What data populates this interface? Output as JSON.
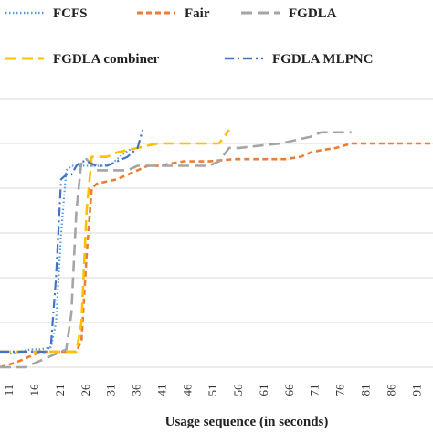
{
  "chart_data": {
    "type": "line",
    "xlabel": "Usage sequence (in seconds)",
    "ylabel": "",
    "x_ticks": [
      "11",
      "16",
      "21",
      "26",
      "31",
      "36",
      "41",
      "46",
      "51",
      "56",
      "61",
      "66",
      "71",
      "76",
      "81",
      "86",
      "91"
    ],
    "xlim": [
      9,
      94
    ],
    "ylim": [
      0,
      6
    ],
    "grid": true,
    "legend": "top",
    "series": [
      {
        "name": "FCFS",
        "color": "#5b9bd5",
        "dash": "dotted",
        "x": [
          11,
          13,
          15,
          17,
          19,
          20,
          21,
          22,
          23,
          25,
          27,
          29,
          31,
          33,
          35
        ],
        "y": [
          0.3,
          0.35,
          0.4,
          0.4,
          0.45,
          1.0,
          3.0,
          4.4,
          4.5,
          4.5,
          4.5,
          4.5,
          4.55,
          4.75,
          4.9
        ]
      },
      {
        "name": "Fair",
        "color": "#ed7d31",
        "dash": "short-dash",
        "x": [
          9,
          12,
          14,
          16,
          18,
          20,
          22,
          24,
          25,
          26,
          27,
          28,
          30,
          32,
          34,
          36,
          38,
          40,
          45,
          50,
          55,
          60,
          65,
          68,
          70,
          72,
          75,
          78,
          80,
          85,
          90,
          94
        ],
        "y": [
          0.0,
          0.1,
          0.2,
          0.3,
          0.35,
          0.35,
          0.35,
          0.35,
          0.6,
          2.5,
          4.0,
          4.1,
          4.15,
          4.2,
          4.3,
          4.4,
          4.5,
          4.5,
          4.6,
          4.6,
          4.65,
          4.65,
          4.65,
          4.7,
          4.8,
          4.85,
          4.9,
          5.0,
          5.0,
          5.0,
          5.0,
          5.0
        ]
      },
      {
        "name": "FGDLA",
        "color": "#a5a5a5",
        "dash": "long-dash",
        "x": [
          9,
          14,
          16,
          18,
          20,
          22,
          23,
          24,
          25,
          26,
          28,
          30,
          32,
          34,
          36,
          40,
          45,
          50,
          52,
          54,
          56,
          60,
          64,
          66,
          68,
          70,
          72,
          76,
          78
        ],
        "y": [
          0.0,
          0.0,
          0.1,
          0.2,
          0.3,
          0.4,
          1.2,
          3.5,
          4.6,
          4.65,
          4.4,
          4.4,
          4.4,
          4.4,
          4.5,
          4.5,
          4.5,
          4.5,
          4.6,
          4.9,
          4.9,
          4.95,
          5.0,
          5.05,
          5.1,
          5.15,
          5.25,
          5.25,
          5.25
        ]
      },
      {
        "name": "FGDLA combiner",
        "color": "#ffc000",
        "dash": "long-dash",
        "x": [
          9,
          12,
          14,
          16,
          18,
          20,
          22,
          24,
          25,
          26,
          27,
          28,
          30,
          32,
          34,
          36,
          38,
          40,
          42,
          45,
          48,
          50,
          52,
          54
        ],
        "y": [
          0.35,
          0.35,
          0.35,
          0.35,
          0.35,
          0.35,
          0.35,
          0.35,
          1.0,
          3.5,
          4.7,
          4.7,
          4.7,
          4.8,
          4.85,
          4.9,
          4.95,
          5.0,
          5.0,
          5.0,
          5.0,
          5.0,
          5.0,
          5.3
        ]
      },
      {
        "name": "FGDLA MLPNC",
        "color": "#4472c4",
        "dash": "dash-dot",
        "x": [
          9,
          12,
          14,
          16,
          18,
          19,
          20,
          21,
          22,
          23,
          24,
          25,
          26,
          28,
          30,
          32,
          34,
          36,
          37
        ],
        "y": [
          0.35,
          0.35,
          0.35,
          0.35,
          0.35,
          0.5,
          2.0,
          4.2,
          4.3,
          4.3,
          4.5,
          4.6,
          4.6,
          4.5,
          4.5,
          4.6,
          4.7,
          4.9,
          5.3
        ]
      }
    ]
  }
}
